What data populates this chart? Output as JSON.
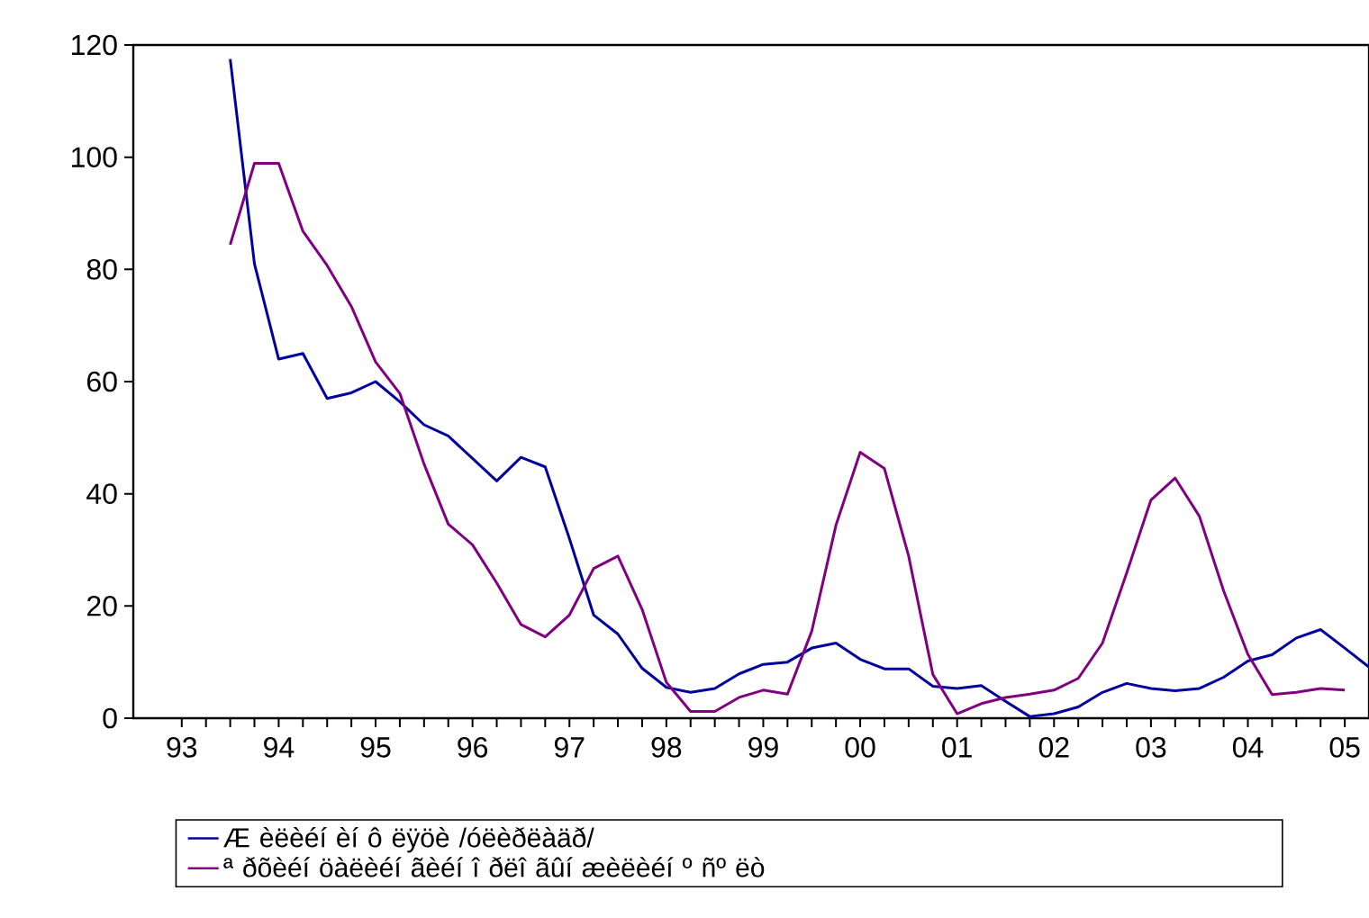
{
  "chart_data": {
    "type": "line",
    "x": [
      "1994-01",
      "1994-04",
      "1994-07",
      "1994-10",
      "1995-01",
      "1995-04",
      "1995-07",
      "1995-10",
      "1996-01",
      "1996-04",
      "1996-07",
      "1996-10",
      "1997-01",
      "1997-04",
      "1997-07",
      "1997-10",
      "1998-01",
      "1998-04",
      "1998-07",
      "1998-10",
      "1999-01",
      "1999-04",
      "1999-07",
      "1999-10",
      "2000-01",
      "2000-04",
      "2000-07",
      "2000-10",
      "2001-01",
      "2001-04",
      "2001-07",
      "2001-10",
      "2002-01",
      "2002-04",
      "2002-07",
      "2002-10",
      "2003-01",
      "2003-04",
      "2003-07",
      "2003-10",
      "2004-01",
      "2004-04",
      "2004-07",
      "2004-10",
      "2005-01",
      "2005-04",
      "2005-07",
      "2005-10"
    ],
    "series": [
      {
        "name": "Æ èëèéí èí ô ëÿöè /óëèðëàäð/",
        "color": "#0000a0",
        "values": [
          117.5,
          81,
          64,
          65,
          57,
          58,
          60,
          56.4,
          52.3,
          50.3,
          46.3,
          42.3,
          46.5,
          44.8,
          32,
          18.4,
          15,
          8.9,
          5.5,
          4.6,
          5.3,
          7.9,
          9.6,
          10,
          12.5,
          13.4,
          10.5,
          8.8,
          8.8,
          5.7,
          5.3,
          5.8,
          3,
          0.3,
          0.8,
          2,
          4.6,
          6.2,
          5.3,
          4.9,
          5.3,
          7.3,
          10.2,
          11.3,
          14.3,
          15.8,
          12.5,
          9.1
        ]
      },
      {
        "name": "ª ðõèéí öàëèéí ãèéí î ðëî ãûí æèëèéí º ñº ëò",
        "color": "#800080",
        "values": [
          84.4,
          98.9,
          98.9,
          86.8,
          80.7,
          73.4,
          63.5,
          57.9,
          45.3,
          34.6,
          30.9,
          24.1,
          16.7,
          14.5,
          18.4,
          26.7,
          28.9,
          19.4,
          6.4,
          1.2,
          1.2,
          3.7,
          5,
          4.3,
          15.5,
          34.4,
          47.4,
          44.5,
          28.9,
          7.8,
          0.8,
          2.6,
          3.7,
          4.3,
          5,
          7.1,
          13.4,
          25.9,
          38.9,
          42.8,
          36,
          22.7,
          11.4,
          4.2,
          4.6,
          5.3,
          5,
          null
        ]
      }
    ],
    "xlim": [
      "1993-01",
      "2005-10"
    ],
    "ylim": [
      0,
      120
    ],
    "xticks": [
      {
        "value": "1993-07",
        "label": "93"
      },
      {
        "value": "1994-07",
        "label": "94"
      },
      {
        "value": "1995-07",
        "label": "95"
      },
      {
        "value": "1996-07",
        "label": "96"
      },
      {
        "value": "1997-07",
        "label": "97"
      },
      {
        "value": "1998-07",
        "label": "98"
      },
      {
        "value": "1999-07",
        "label": "99"
      },
      {
        "value": "2000-07",
        "label": "00"
      },
      {
        "value": "2001-07",
        "label": "01"
      },
      {
        "value": "2002-07",
        "label": "02"
      },
      {
        "value": "2003-07",
        "label": "03"
      },
      {
        "value": "2004-07",
        "label": "04"
      },
      {
        "value": "2005-07",
        "label": "05"
      }
    ],
    "yticks": [
      0,
      20,
      40,
      60,
      80,
      100,
      120
    ],
    "grid": false,
    "legend": "bottom",
    "marker": "none",
    "line_style": "solid"
  }
}
